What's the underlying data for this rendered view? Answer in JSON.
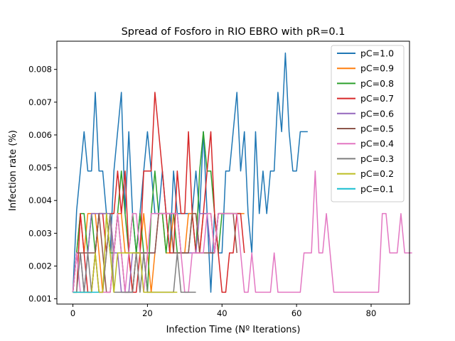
{
  "chart_data": {
    "type": "line",
    "title": "Spread of Fosforo in RIO EBRO with pR=0.1",
    "xlabel": "Infection Time (Nº Iterations)",
    "ylabel": "Infection rate (%)",
    "xlim": [
      -4.3,
      90.3
    ],
    "ylim": [
      0.00084,
      0.00886
    ],
    "xticks": [
      0,
      20,
      40,
      60,
      80
    ],
    "xtick_labels": [
      "0",
      "20",
      "40",
      "60",
      "80"
    ],
    "yticks": [
      0.001,
      0.002,
      0.003,
      0.004,
      0.005,
      0.006,
      0.007,
      0.008
    ],
    "ytick_labels": [
      "0.001",
      "0.002",
      "0.003",
      "0.004",
      "0.005",
      "0.006",
      "0.007",
      "0.008"
    ],
    "grid": false,
    "legend_position": "upper right",
    "series": [
      {
        "name": "pC=1.0",
        "color": "#1f77b4",
        "values": [
          0.0012,
          0.0037,
          0.0049,
          0.0061,
          0.0049,
          0.0049,
          0.0073,
          0.0049,
          0.0049,
          0.0036,
          0.0024,
          0.0049,
          0.0061,
          0.0073,
          0.0036,
          0.0061,
          0.0036,
          0.0024,
          0.0036,
          0.0049,
          0.0061,
          0.0049,
          0.0036,
          0.0036,
          0.0049,
          0.0036,
          0.0024,
          0.0049,
          0.0036,
          0.0036,
          0.0036,
          0.0036,
          0.0036,
          0.0049,
          0.0036,
          0.0061,
          0.0036,
          0.0012,
          0.0036,
          0.0024,
          0.0024,
          0.0049,
          0.0049,
          0.0061,
          0.0073,
          0.0049,
          0.0061,
          0.0036,
          0.0024,
          0.0061,
          0.0036,
          0.0049,
          0.0036,
          0.0049,
          0.0049,
          0.0073,
          0.0061,
          0.0085,
          0.0061,
          0.0049,
          0.0049,
          0.0061,
          0.0061,
          0.0061
        ]
      },
      {
        "name": "pC=0.9",
        "color": "#ff7f0e",
        "values": [
          0.0012,
          0.0024,
          0.0036,
          0.0024,
          0.0036,
          0.0036,
          0.0036,
          0.0024,
          0.0012,
          0.0024,
          0.0036,
          0.0024,
          0.0036,
          0.0036,
          0.0024,
          0.0024,
          0.0012,
          0.0024,
          0.0024,
          0.0036,
          0.0024,
          0.0012,
          0.0024,
          0.0036,
          0.0036,
          0.0024,
          0.0024,
          0.0036,
          0.0036,
          0.0024,
          0.0024,
          0.0036,
          0.0036,
          0.0036,
          0.0024,
          0.0036,
          0.0036,
          0.0036,
          0.0024,
          0.0036,
          0.0036,
          0.0036,
          0.0036,
          0.0036,
          0.0036,
          0.0036,
          0.0036
        ]
      },
      {
        "name": "pC=0.8",
        "color": "#2ca02c",
        "values": [
          0.0012,
          0.0024,
          0.0036,
          0.0036,
          0.0024,
          0.0036,
          0.0024,
          0.0036,
          0.0036,
          0.0036,
          0.0024,
          0.0024,
          0.0036,
          0.0049,
          0.0036,
          0.0024,
          0.0036,
          0.0024,
          0.0036,
          0.0024,
          0.0012,
          0.0036,
          0.0049,
          0.0036,
          0.0036,
          0.0024,
          0.0036,
          0.0036,
          0.0024,
          0.0024,
          0.0024,
          0.0024,
          0.0036,
          0.0024,
          0.0049,
          0.0061,
          0.0049,
          0.0049,
          0.0036,
          0.0024,
          0.0036,
          0.0036,
          0.0036,
          0.0036,
          0.0036,
          0.0036
        ]
      },
      {
        "name": "pC=0.7",
        "color": "#d62728",
        "values": [
          0.0012,
          0.0012,
          0.0036,
          0.0024,
          0.0012,
          0.0012,
          0.0024,
          0.0036,
          0.0036,
          0.0024,
          0.0036,
          0.0036,
          0.0049,
          0.0036,
          0.0049,
          0.0024,
          0.0012,
          0.0012,
          0.0024,
          0.0049,
          0.0049,
          0.0049,
          0.0073,
          0.0061,
          0.0049,
          0.0036,
          0.0024,
          0.0024,
          0.0049,
          0.0036,
          0.0036,
          0.0061,
          0.0036,
          0.0024,
          0.0024,
          0.0036,
          0.0049,
          0.0061,
          0.0036,
          0.0024,
          0.0012,
          0.0012,
          0.0024,
          0.0024,
          0.0036,
          0.0036,
          0.0024
        ]
      },
      {
        "name": "pC=0.6",
        "color": "#9467bd",
        "values": [
          0.0012,
          0.0024,
          0.0024,
          0.0012,
          0.0024,
          0.0036,
          0.0036,
          0.0036,
          0.0036,
          0.0036,
          0.0036,
          0.0024,
          0.0024,
          0.0012,
          0.0012,
          0.0012,
          0.0024,
          0.0024,
          0.0024,
          0.0024,
          0.0024,
          0.0024,
          0.0024,
          0.0036,
          0.0036,
          0.0036,
          0.0036,
          0.0036,
          0.0036,
          0.0024,
          0.0024,
          0.0024,
          0.0024,
          0.0024,
          0.0036,
          0.0036,
          0.0036,
          0.0024,
          0.0024,
          0.0036
        ]
      },
      {
        "name": "pC=0.5",
        "color": "#8c564b",
        "values": [
          0.0012,
          0.0024,
          0.0024,
          0.0024,
          0.0024,
          0.0024,
          0.0024,
          0.0036,
          0.0024,
          0.0012,
          0.0012,
          0.0024,
          0.0036,
          0.0024,
          0.0012,
          0.0012,
          0.0012,
          0.0024,
          0.0024,
          0.0024,
          0.0024,
          0.0024,
          0.0024,
          0.0036,
          0.0036,
          0.0036,
          0.0036,
          0.0024,
          0.0024,
          0.0024,
          0.0024,
          0.0024,
          0.0036,
          0.0036,
          0.0024,
          0.0024,
          0.0024,
          0.0024,
          0.0024,
          0.0036,
          0.0036,
          0.0036,
          0.0036,
          0.0036,
          0.0024
        ]
      },
      {
        "name": "pC=0.4",
        "color": "#e377c2",
        "values": [
          0.0012,
          0.0024,
          0.0012,
          0.0012,
          0.0012,
          0.0012,
          0.0024,
          0.0012,
          0.0012,
          0.0012,
          0.0012,
          0.0024,
          0.0036,
          0.0024,
          0.0012,
          0.0024,
          0.0036,
          0.0036,
          0.0024,
          0.0012,
          0.0024,
          0.0036,
          0.0036,
          0.0036,
          0.0036,
          0.0036,
          0.0036,
          0.0036,
          0.0036,
          0.0024,
          0.0012,
          0.0012,
          0.0024,
          0.0024,
          0.0024,
          0.0024,
          0.0036,
          0.0036,
          0.0024,
          0.0036,
          0.0036,
          0.0036,
          0.0036,
          0.0036,
          0.0036,
          0.0024,
          0.0012,
          0.0012,
          0.0024,
          0.0012,
          0.0012,
          0.0012,
          0.0012,
          0.0012,
          0.0024,
          0.0012,
          0.0012,
          0.0012,
          0.0012,
          0.0012,
          0.0012,
          0.0012,
          0.0024,
          0.0024,
          0.0024,
          0.0049,
          0.0024,
          0.0024,
          0.0036,
          0.0024,
          0.0012,
          0.0012,
          0.0012,
          0.0012,
          0.0012,
          0.0012,
          0.0012,
          0.0012,
          0.0012,
          0.0012,
          0.0012,
          0.0012,
          0.0012,
          0.0036,
          0.0036,
          0.0024,
          0.0024,
          0.0024,
          0.0036,
          0.0024,
          0.0024,
          0.0024
        ]
      },
      {
        "name": "pC=0.3",
        "color": "#7f7f7f",
        "values": [
          0.0012,
          0.0012,
          0.0024,
          0.0012,
          0.0024,
          0.0012,
          0.0024,
          0.0012,
          0.0012,
          0.0024,
          0.0036,
          0.0012,
          0.0012,
          0.0012,
          0.0012,
          0.0012,
          0.0012,
          0.0024,
          0.0012,
          0.0024,
          0.0012,
          0.0012,
          0.0012,
          0.0012,
          0.0012,
          0.0012,
          0.0012,
          0.0012,
          0.0024,
          0.0012,
          0.0012,
          0.0012,
          0.0012,
          0.0012
        ]
      },
      {
        "name": "pC=0.2",
        "color": "#bcbd22",
        "values": [
          0.0012,
          0.0012,
          0.0012,
          0.0012,
          0.0012,
          0.0012,
          0.0024,
          0.0012,
          0.0012,
          0.0036,
          0.0024,
          0.0012,
          0.0024,
          0.0024,
          0.0024,
          0.0024,
          0.0024,
          0.0024,
          0.0024,
          0.0012,
          0.0012,
          0.0012,
          0.0012,
          0.0012,
          0.0012,
          0.0012,
          0.0012,
          0.0012,
          0.0012
        ]
      },
      {
        "name": "pC=0.1",
        "color": "#17becf",
        "values": [
          0.0012,
          0.0012,
          0.0012,
          0.0012,
          0.0012,
          0.0012,
          0.0012,
          0.0012
        ]
      }
    ]
  }
}
